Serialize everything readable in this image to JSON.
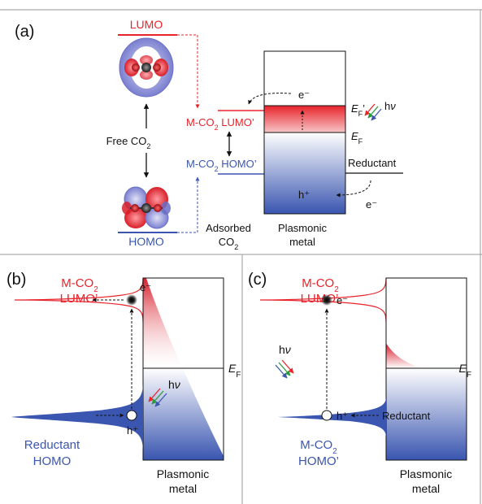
{
  "panel_a": {
    "label": "(a)",
    "lumo": "LUMO",
    "homo": "HOMO",
    "free_co2_main": "Free CO",
    "free_co2_sub": "2",
    "mco2_lumo_pre": "M-CO",
    "mco2_lumo_sub": "2",
    "mco2_lumo_post": " LUMO’",
    "mco2_homo_pre": "M-CO",
    "mco2_homo_sub": "2",
    "mco2_homo_post": " HOMO’",
    "electron": "e⁻",
    "electron2": "e⁻",
    "hole": "h⁺",
    "ef_prime_main": "E",
    "ef_prime_sub": "F",
    "ef_prime_mark": "’",
    "ef_main": "E",
    "ef_sub": "F",
    "hv_main": "h",
    "hv_nu": "ν",
    "reductant": "Reductant",
    "adsorbed_line1": "Adsorbed",
    "adsorbed_line2_main": "CO",
    "adsorbed_line2_sub": "2",
    "plasmonic_line1": "Plasmonic",
    "plasmonic_line2": "metal"
  },
  "panel_b": {
    "label": "(b)",
    "mco2_pre": "M-CO",
    "mco2_sub": "2",
    "lumo_prime": "LUMO’",
    "electron": "e⁻",
    "hole": "h⁺",
    "hv_main": "h",
    "hv_nu": "ν",
    "ef_main": "E",
    "ef_sub": "F",
    "reductant": "Reductant",
    "homo": "HOMO",
    "plasmonic_line1": "Plasmonic",
    "plasmonic_line2": "metal"
  },
  "panel_c": {
    "label": "(c)",
    "mco2_top_pre": "M-CO",
    "mco2_top_sub": "2",
    "lumo_prime": "LUMO’",
    "electron": "e⁻",
    "hole": "h⁺",
    "hv_main": "h",
    "hv_nu": "ν",
    "ef_main": "E",
    "ef_sub": "F",
    "reductant": "Reductant",
    "mco2_bot_pre": "M-CO",
    "mco2_bot_sub": "2",
    "homo_prime": "HOMO’",
    "plasmonic_line1": "Plasmonic",
    "plasmonic_line2": "metal"
  },
  "colors": {
    "red": "#e8232a",
    "blue": "#3a56b0",
    "dark_blue": "#2b3f96",
    "black": "#111111",
    "frame": "#9a9a9a"
  }
}
